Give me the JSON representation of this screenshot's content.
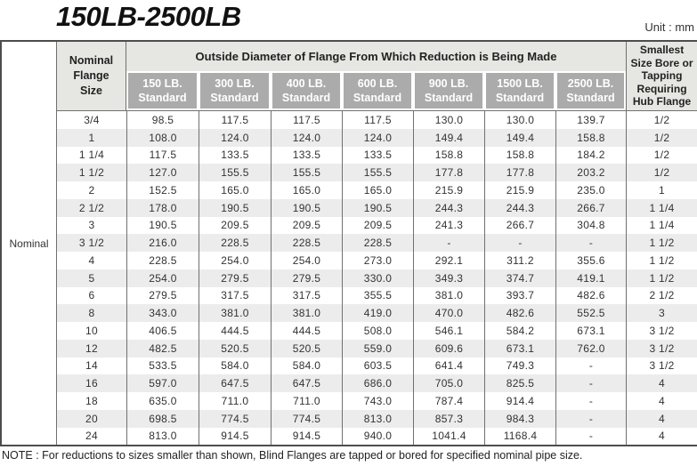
{
  "page": {
    "title": "150LB-2500LB",
    "unit_label": "Unit : mm",
    "note": "NOTE : For reductions to sizes smaller than shown, Blind Flanges are tapped or bored for specified  nominal pipe size."
  },
  "colors": {
    "header_bg": "#e6e6e3",
    "subheader_bg": "#ababab",
    "subheader_text": "#ffffff",
    "row_alt_bg": "#ececec",
    "border_dark": "#4d4d4d",
    "border_inner": "#707070"
  },
  "table": {
    "row_axis_label": "Nominal",
    "corner_header": "Nominal\nFlange\nSize",
    "span_header": "Outside Diameter of Flange From Which Reduction is Being Made",
    "sub_headers": [
      "150 LB.\nStandard",
      "300 LB.\nStandard",
      "400 LB.\nStandard",
      "600 LB.\nStandard",
      "900 LB.\nStandard",
      "1500 LB.\nStandard",
      "2500 LB.\nStandard"
    ],
    "smallest_header": "Smallest\nSize Bore or\nTapping\nRequiring\nHub Flange",
    "rows": [
      {
        "size": "3/4",
        "values": [
          "98.5",
          "117.5",
          "117.5",
          "117.5",
          "130.0",
          "130.0",
          "139.7"
        ],
        "smallest": "1/2"
      },
      {
        "size": "1",
        "values": [
          "108.0",
          "124.0",
          "124.0",
          "124.0",
          "149.4",
          "149.4",
          "158.8"
        ],
        "smallest": "1/2"
      },
      {
        "size": "1 1/4",
        "values": [
          "117.5",
          "133.5",
          "133.5",
          "133.5",
          "158.8",
          "158.8",
          "184.2"
        ],
        "smallest": "1/2"
      },
      {
        "size": "1 1/2",
        "values": [
          "127.0",
          "155.5",
          "155.5",
          "155.5",
          "177.8",
          "177.8",
          "203.2"
        ],
        "smallest": "1/2"
      },
      {
        "size": "2",
        "values": [
          "152.5",
          "165.0",
          "165.0",
          "165.0",
          "215.9",
          "215.9",
          "235.0"
        ],
        "smallest": "1"
      },
      {
        "size": "2 1/2",
        "values": [
          "178.0",
          "190.5",
          "190.5",
          "190.5",
          "244.3",
          "244.3",
          "266.7"
        ],
        "smallest": "1 1/4"
      },
      {
        "size": "3",
        "values": [
          "190.5",
          "209.5",
          "209.5",
          "209.5",
          "241.3",
          "266.7",
          "304.8"
        ],
        "smallest": "1 1/4"
      },
      {
        "size": "3 1/2",
        "values": [
          "216.0",
          "228.5",
          "228.5",
          "228.5",
          "-",
          "-",
          "-"
        ],
        "smallest": "1 1/2"
      },
      {
        "size": "4",
        "values": [
          "228.5",
          "254.0",
          "254.0",
          "273.0",
          "292.1",
          "311.2",
          "355.6"
        ],
        "smallest": "1 1/2"
      },
      {
        "size": "5",
        "values": [
          "254.0",
          "279.5",
          "279.5",
          "330.0",
          "349.3",
          "374.7",
          "419.1"
        ],
        "smallest": "1 1/2"
      },
      {
        "size": "6",
        "values": [
          "279.5",
          "317.5",
          "317.5",
          "355.5",
          "381.0",
          "393.7",
          "482.6"
        ],
        "smallest": "2 1/2"
      },
      {
        "size": "8",
        "values": [
          "343.0",
          "381.0",
          "381.0",
          "419.0",
          "470.0",
          "482.6",
          "552.5"
        ],
        "smallest": "3"
      },
      {
        "size": "10",
        "values": [
          "406.5",
          "444.5",
          "444.5",
          "508.0",
          "546.1",
          "584.2",
          "673.1"
        ],
        "smallest": "3 1/2"
      },
      {
        "size": "12",
        "values": [
          "482.5",
          "520.5",
          "520.5",
          "559.0",
          "609.6",
          "673.1",
          "762.0"
        ],
        "smallest": "3 1/2"
      },
      {
        "size": "14",
        "values": [
          "533.5",
          "584.0",
          "584.0",
          "603.5",
          "641.4",
          "749.3",
          "-"
        ],
        "smallest": "3 1/2"
      },
      {
        "size": "16",
        "values": [
          "597.0",
          "647.5",
          "647.5",
          "686.0",
          "705.0",
          "825.5",
          "-"
        ],
        "smallest": "4"
      },
      {
        "size": "18",
        "values": [
          "635.0",
          "711.0",
          "711.0",
          "743.0",
          "787.4",
          "914.4",
          "-"
        ],
        "smallest": "4"
      },
      {
        "size": "20",
        "values": [
          "698.5",
          "774.5",
          "774.5",
          "813.0",
          "857.3",
          "984.3",
          "-"
        ],
        "smallest": "4"
      },
      {
        "size": "24",
        "values": [
          "813.0",
          "914.5",
          "914.5",
          "940.0",
          "1041.4",
          "1168.4",
          "-"
        ],
        "smallest": "4"
      }
    ]
  }
}
